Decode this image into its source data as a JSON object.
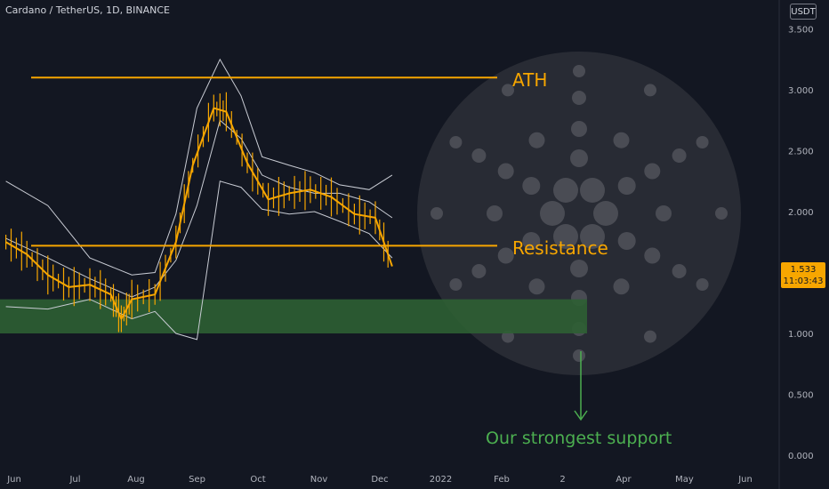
{
  "header": {
    "symbol": "Cardano / TetherUS, 1D, BINANCE"
  },
  "price_axis": {
    "unit_label": "USDT"
  },
  "last_price": {
    "value": "1.533",
    "countdown": "11:03:43"
  },
  "colors": {
    "background": "#131722",
    "candle": "#f7a600",
    "support_zone": "#2e5f33",
    "annotation_orange": "#f7a600",
    "annotation_green": "#4caf50",
    "bands": "#c9ccd4",
    "axis_text": "#b2b5be"
  },
  "annotations": {
    "ath": "ATH",
    "resistance": "Resistance",
    "support": "Our strongest support"
  },
  "chart_data": {
    "type": "line",
    "x_tick_labels": [
      "Jun",
      "Jul",
      "Aug",
      "Sep",
      "Oct",
      "Nov",
      "Dec",
      "2022",
      "Feb",
      "2",
      "Apr",
      "May",
      "Jun"
    ],
    "y_tick_labels": [
      "3.500",
      "3.000",
      "2.500",
      "2.000",
      "1.500",
      "1.000",
      "0.500",
      "0.000"
    ],
    "y_ticks": [
      3.5,
      3.0,
      2.5,
      2.0,
      1.5,
      1.0,
      0.5,
      0.0
    ],
    "ylim": [
      0.0,
      3.5
    ],
    "horizontal_levels": [
      {
        "label": "ATH",
        "y": 3.1
      },
      {
        "label": "Resistance",
        "y": 1.72
      }
    ],
    "support_zone": {
      "y_low": 1.0,
      "y_high": 1.28
    },
    "last_price": 1.533,
    "series": [
      {
        "kind": "price",
        "x": [
          "2021-05-26",
          "2021-06-05",
          "2021-06-15",
          "2021-06-25",
          "2021-07-05",
          "2021-07-15",
          "2021-07-20",
          "2021-07-25",
          "2021-08-05",
          "2021-08-15",
          "2021-08-23",
          "2021-09-02",
          "2021-09-08",
          "2021-09-18",
          "2021-09-28",
          "2021-10-08",
          "2021-10-18",
          "2021-10-28",
          "2021-11-08",
          "2021-11-18",
          "2021-11-26"
        ],
        "y": [
          1.75,
          1.65,
          1.48,
          1.38,
          1.4,
          1.32,
          1.12,
          1.28,
          1.32,
          1.75,
          2.38,
          2.85,
          2.82,
          2.4,
          2.1,
          2.15,
          2.18,
          2.12,
          1.98,
          1.95,
          1.55
        ]
      },
      {
        "kind": "upper_band",
        "x": [
          "2021-05-26",
          "2021-06-15",
          "2021-07-05",
          "2021-07-25",
          "2021-08-05",
          "2021-08-15",
          "2021-08-25",
          "2021-09-05",
          "2021-09-15",
          "2021-09-25",
          "2021-10-08",
          "2021-10-20",
          "2021-11-01",
          "2021-11-15",
          "2021-11-26"
        ],
        "y": [
          2.25,
          2.05,
          1.62,
          1.48,
          1.5,
          1.98,
          2.85,
          3.25,
          2.95,
          2.45,
          2.38,
          2.32,
          2.22,
          2.18,
          2.3
        ]
      },
      {
        "kind": "middle_band",
        "x": [
          "2021-05-26",
          "2021-06-15",
          "2021-07-05",
          "2021-07-25",
          "2021-08-05",
          "2021-08-15",
          "2021-08-25",
          "2021-09-05",
          "2021-09-15",
          "2021-09-25",
          "2021-10-08",
          "2021-10-20",
          "2021-11-01",
          "2021-11-15",
          "2021-11-26"
        ],
        "y": [
          1.78,
          1.62,
          1.45,
          1.3,
          1.38,
          1.6,
          2.05,
          2.75,
          2.6,
          2.3,
          2.2,
          2.15,
          2.15,
          2.08,
          1.95
        ]
      },
      {
        "kind": "lower_band",
        "x": [
          "2021-05-26",
          "2021-06-15",
          "2021-07-05",
          "2021-07-25",
          "2021-08-05",
          "2021-08-15",
          "2021-08-25",
          "2021-09-05",
          "2021-09-15",
          "2021-09-25",
          "2021-10-08",
          "2021-10-20",
          "2021-11-01",
          "2021-11-15",
          "2021-11-26"
        ],
        "y": [
          1.22,
          1.2,
          1.28,
          1.12,
          1.18,
          1.0,
          0.95,
          2.25,
          2.2,
          2.02,
          1.98,
          2.0,
          1.92,
          1.82,
          1.62
        ]
      }
    ]
  }
}
